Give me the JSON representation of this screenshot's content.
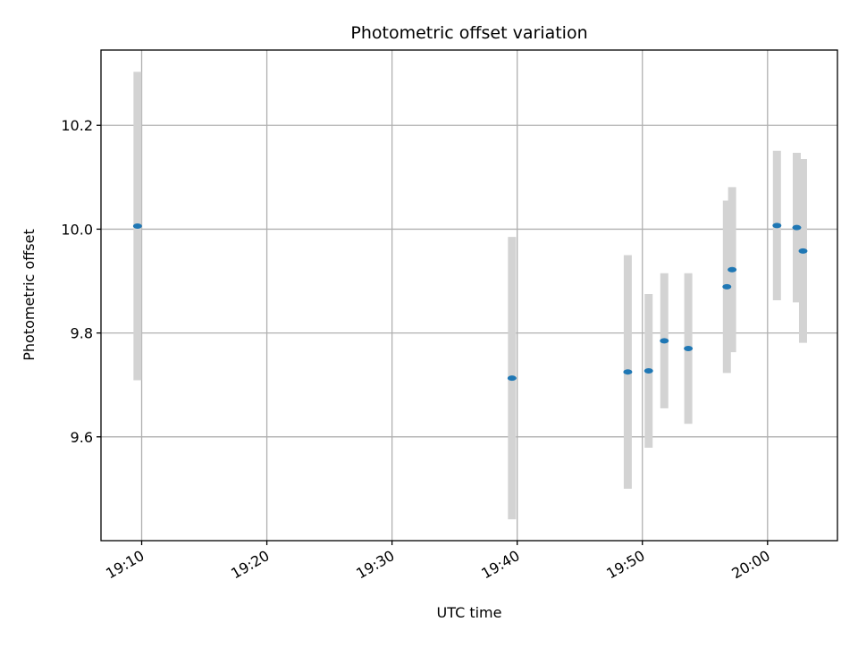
{
  "chart_data": {
    "type": "scatter",
    "title": "Photometric offset variation",
    "xlabel": "UTC time",
    "ylabel": "Photometric offset",
    "x_ticks": [
      "19:10",
      "19:20",
      "19:30",
      "19:40",
      "19:50",
      "20:00"
    ],
    "y_ticks": [
      "9.6",
      "9.8",
      "10.0",
      "10.2"
    ],
    "xlim": [
      "19:06:45",
      "20:05:35"
    ],
    "ylim": [
      9.4,
      10.345
    ],
    "grid": true,
    "errorbar_color": "#d3d3d3",
    "marker_color": "#1f77b4",
    "points": [
      {
        "time": "19:09:40",
        "value": 10.006,
        "err": 0.297
      },
      {
        "time": "19:39:35",
        "value": 9.713,
        "err": 0.272
      },
      {
        "time": "19:48:50",
        "value": 9.725,
        "err": 0.225
      },
      {
        "time": "19:50:30",
        "value": 9.727,
        "err": 0.148
      },
      {
        "time": "19:51:45",
        "value": 9.785,
        "err": 0.13
      },
      {
        "time": "19:53:40",
        "value": 9.77,
        "err": 0.145
      },
      {
        "time": "19:56:45",
        "value": 9.889,
        "err": 0.166
      },
      {
        "time": "19:57:10",
        "value": 9.922,
        "err": 0.159
      },
      {
        "time": "20:00:45",
        "value": 10.007,
        "err": 0.144
      },
      {
        "time": "20:02:20",
        "value": 10.003,
        "err": 0.144
      },
      {
        "time": "20:02:50",
        "value": 9.958,
        "err": 0.177
      }
    ]
  }
}
